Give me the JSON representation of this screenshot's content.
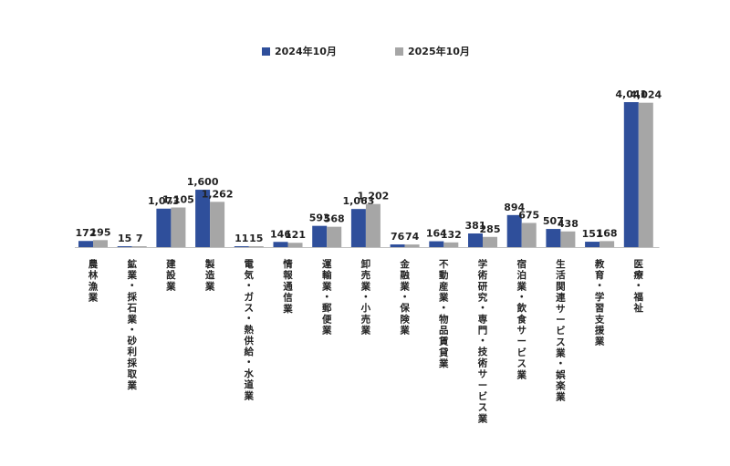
{
  "chart_data": {
    "type": "bar",
    "title": "",
    "xlabel": "",
    "ylabel": "",
    "ylim": [
      0,
      4300
    ],
    "grid": false,
    "legend_position": "top-center",
    "categories": [
      "農林漁業",
      "鉱業・採石業・砂利採取業",
      "建設業",
      "製造業",
      "電気・ガス・熱供給・水道業",
      "情報通信業",
      "運輸業・郵便業",
      "卸売業・小売業",
      "金融業・保険業",
      "不動産業・物品賃貸業",
      "学術研究・専門・技術サービス業",
      "宿泊業・飲食サービス業",
      "生活関連サービス業・娯楽業",
      "教育・学習支援業",
      "医療・福祉"
    ],
    "series": [
      {
        "name": "2024年10月",
        "color": "#2f4f9b",
        "values": [
          172,
          15,
          1073,
          1600,
          11,
          146,
          593,
          1063,
          76,
          164,
          381,
          894,
          507,
          151,
          4041
        ],
        "labels": [
          "172",
          "15",
          "1,073",
          "1,600",
          "11",
          "146",
          "593",
          "1,063",
          "76",
          "164",
          "381",
          "894",
          "507",
          "151",
          "4,041"
        ]
      },
      {
        "name": "2025年10月",
        "color": "#a6a6a6",
        "values": [
          195,
          7,
          1105,
          1262,
          15,
          121,
          568,
          1202,
          74,
          132,
          285,
          675,
          438,
          168,
          4024
        ],
        "labels": [
          "195",
          "7",
          "1,105",
          "1,262",
          "15",
          "121",
          "568",
          "1,202",
          "74",
          "132",
          "285",
          "675",
          "438",
          "168",
          "4,024"
        ]
      }
    ]
  }
}
